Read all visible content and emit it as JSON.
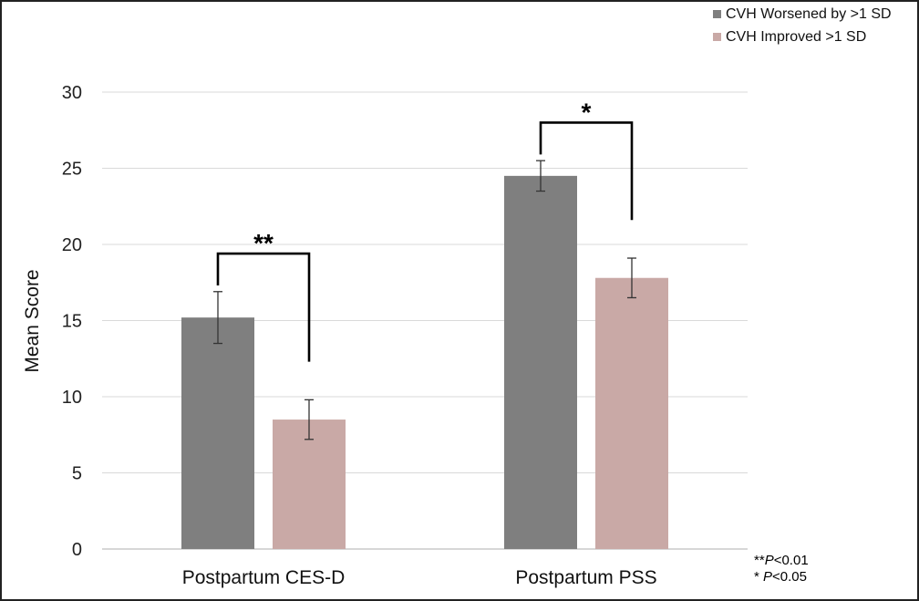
{
  "chart_data": {
    "type": "bar",
    "categories": [
      "Postpartum CES-D",
      "Postpartum PSS"
    ],
    "series": [
      {
        "name": "CVH Worsened by >1 SD",
        "color": "#7f7f7f",
        "values": [
          15.2,
          24.5
        ],
        "error": [
          1.7,
          1.0
        ]
      },
      {
        "name": "CVH Improved >1 SD",
        "color": "#c9a9a6",
        "values": [
          8.5,
          17.8
        ],
        "error": [
          1.3,
          1.3
        ]
      }
    ],
    "ylabel": "Mean Score",
    "xlabel": "",
    "title": "",
    "ylim": [
      0,
      30
    ],
    "yticks": [
      0,
      5,
      10,
      15,
      20,
      25,
      30
    ],
    "grid": true,
    "legend_position": "top-right",
    "significance": [
      {
        "category": "Postpartum CES-D",
        "label": "**"
      },
      {
        "category": "Postpartum PSS",
        "label": "*"
      }
    ],
    "footnotes": [
      {
        "prefix": "**",
        "italic": "P",
        "suffix": "<0.01"
      },
      {
        "prefix": "* ",
        "italic": "P",
        "suffix": "<0.05"
      }
    ]
  }
}
